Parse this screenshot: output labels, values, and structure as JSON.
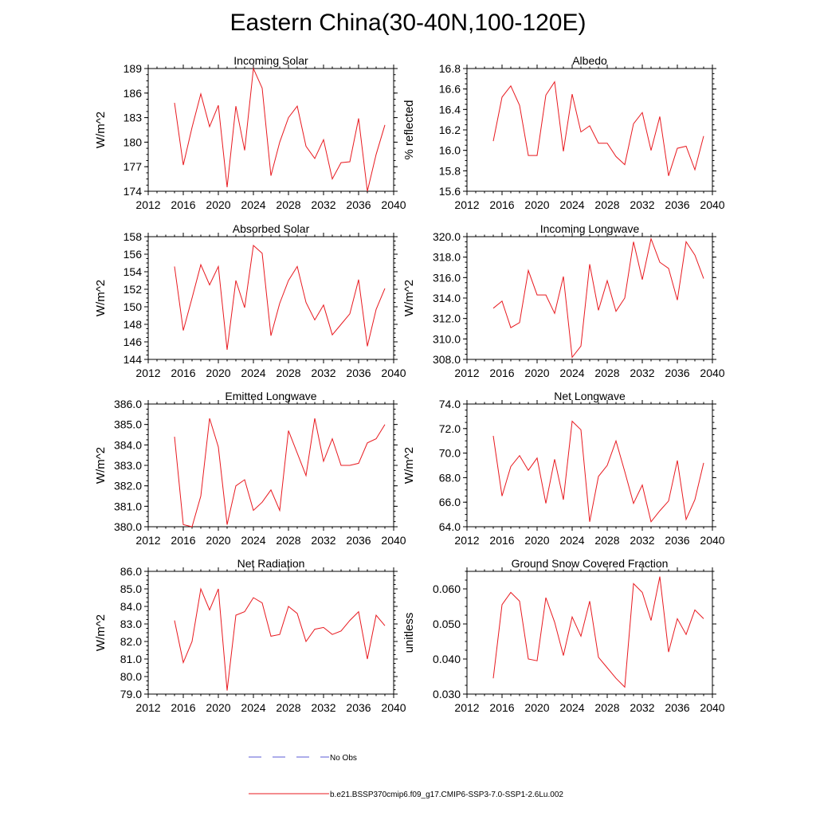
{
  "figure": {
    "title": "Eastern China(30-40N,100-120E)"
  },
  "legend": {
    "entries": [
      {
        "label": "No Obs",
        "color": "#5b5bd6",
        "style": "dashed"
      },
      {
        "label": "b.e21.BSSP370cmip6.f09_g17.CMIP6-SSP3-7.0-SSP1-2.6Lu.002",
        "color": "#e8191f",
        "style": "solid"
      }
    ]
  },
  "colors": {
    "series": "#e8191f",
    "axes": "#000000"
  },
  "chart_data": [
    {
      "type": "line",
      "title": "Incoming Solar",
      "ylabel": "W/m^2",
      "xlim": [
        2012,
        2040
      ],
      "ylim": [
        174,
        189
      ],
      "xticks": [
        "2012",
        "2016",
        "2020",
        "2024",
        "2028",
        "2032",
        "2036",
        "2040"
      ],
      "yticks": [
        "174",
        "177",
        "180",
        "183",
        "186",
        "189"
      ],
      "series": [
        {
          "x": [
            2015,
            2016,
            2017,
            2018,
            2019,
            2020,
            2021,
            2022,
            2023,
            2024,
            2025,
            2026,
            2027,
            2028,
            2029,
            2030,
            2031,
            2032,
            2033,
            2034,
            2035,
            2036,
            2037,
            2038,
            2039
          ],
          "values": [
            184.8,
            177.2,
            181.8,
            185.9,
            181.9,
            184.5,
            174.5,
            184.4,
            179.0,
            189.0,
            186.6,
            175.9,
            180.0,
            183.0,
            184.4,
            179.5,
            178.0,
            180.3,
            175.5,
            177.5,
            177.6,
            182.9,
            174.0,
            178.5,
            182.1
          ]
        }
      ]
    },
    {
      "type": "line",
      "title": "Albedo",
      "ylabel": "% reflected",
      "xlim": [
        2012,
        2040
      ],
      "ylim": [
        15.6,
        16.8
      ],
      "xticks": [
        "2012",
        "2016",
        "2020",
        "2024",
        "2028",
        "2032",
        "2036",
        "2040"
      ],
      "yticks": [
        "15.6",
        "15.8",
        "16.0",
        "16.2",
        "16.4",
        "16.6",
        "16.8"
      ],
      "series": [
        {
          "x": [
            2015,
            2016,
            2017,
            2018,
            2019,
            2020,
            2021,
            2022,
            2023,
            2024,
            2025,
            2026,
            2027,
            2028,
            2029,
            2030,
            2031,
            2032,
            2033,
            2034,
            2035,
            2036,
            2037,
            2038,
            2039
          ],
          "values": [
            16.09,
            16.52,
            16.63,
            16.44,
            15.95,
            15.95,
            16.54,
            16.67,
            15.99,
            16.55,
            16.18,
            16.24,
            16.07,
            16.07,
            15.94,
            15.86,
            16.26,
            16.37,
            16.0,
            16.33,
            15.75,
            16.02,
            16.04,
            15.81,
            16.14
          ]
        }
      ]
    },
    {
      "type": "line",
      "title": "Absorbed Solar",
      "ylabel": "W/m^2",
      "xlim": [
        2012,
        2040
      ],
      "ylim": [
        144,
        158
      ],
      "xticks": [
        "2012",
        "2016",
        "2020",
        "2024",
        "2028",
        "2032",
        "2036",
        "2040"
      ],
      "yticks": [
        "144",
        "146",
        "148",
        "150",
        "152",
        "154",
        "156",
        "158"
      ],
      "series": [
        {
          "x": [
            2015,
            2016,
            2017,
            2018,
            2019,
            2020,
            2021,
            2022,
            2023,
            2024,
            2025,
            2026,
            2027,
            2028,
            2029,
            2030,
            2031,
            2032,
            2033,
            2034,
            2035,
            2036,
            2037,
            2038,
            2039
          ],
          "values": [
            154.6,
            147.3,
            151.0,
            154.8,
            152.5,
            154.6,
            145.1,
            153.0,
            149.9,
            157.0,
            156.1,
            146.7,
            150.4,
            153.0,
            154.6,
            150.5,
            148.5,
            150.2,
            146.8,
            148.0,
            149.2,
            153.1,
            145.5,
            149.7,
            152.1
          ]
        }
      ]
    },
    {
      "type": "line",
      "title": "Incoming Longwave",
      "ylabel": "W/m^2",
      "xlim": [
        2012,
        2040
      ],
      "ylim": [
        308.0,
        320.0
      ],
      "xticks": [
        "2012",
        "2016",
        "2020",
        "2024",
        "2028",
        "2032",
        "2036",
        "2040"
      ],
      "yticks": [
        "308.0",
        "310.0",
        "312.0",
        "314.0",
        "316.0",
        "318.0",
        "320.0"
      ],
      "series": [
        {
          "x": [
            2015,
            2016,
            2017,
            2018,
            2019,
            2020,
            2021,
            2022,
            2023,
            2024,
            2025,
            2026,
            2027,
            2028,
            2029,
            2030,
            2031,
            2032,
            2033,
            2034,
            2035,
            2036,
            2037,
            2038,
            2039
          ],
          "values": [
            313.0,
            313.7,
            311.1,
            311.6,
            316.7,
            314.3,
            314.3,
            312.5,
            316.1,
            308.2,
            309.3,
            317.3,
            312.8,
            315.7,
            312.7,
            314.0,
            319.5,
            315.8,
            319.8,
            317.5,
            316.9,
            313.8,
            319.5,
            318.2,
            315.9
          ]
        }
      ]
    },
    {
      "type": "line",
      "title": "Emitted Longwave",
      "ylabel": "W/m^2",
      "xlim": [
        2012,
        2040
      ],
      "ylim": [
        380.0,
        386.0
      ],
      "xticks": [
        "2012",
        "2016",
        "2020",
        "2024",
        "2028",
        "2032",
        "2036",
        "2040"
      ],
      "yticks": [
        "380.0",
        "381.0",
        "382.0",
        "383.0",
        "384.0",
        "385.0",
        "386.0"
      ],
      "series": [
        {
          "x": [
            2015,
            2016,
            2017,
            2018,
            2019,
            2020,
            2021,
            2022,
            2023,
            2024,
            2025,
            2026,
            2027,
            2028,
            2029,
            2030,
            2031,
            2032,
            2033,
            2034,
            2035,
            2036,
            2037,
            2038,
            2039
          ],
          "values": [
            384.4,
            380.1,
            380.0,
            381.5,
            385.3,
            383.9,
            380.1,
            382.0,
            382.3,
            380.8,
            381.2,
            381.8,
            380.8,
            384.7,
            383.6,
            382.5,
            385.3,
            383.2,
            384.3,
            383.0,
            383.0,
            383.1,
            384.1,
            384.3,
            385.0
          ]
        }
      ]
    },
    {
      "type": "line",
      "title": "Net Longwave",
      "ylabel": "W/m^2",
      "xlim": [
        2012,
        2040
      ],
      "ylim": [
        64.0,
        74.0
      ],
      "xticks": [
        "2012",
        "2016",
        "2020",
        "2024",
        "2028",
        "2032",
        "2036",
        "2040"
      ],
      "yticks": [
        "64.0",
        "66.0",
        "68.0",
        "70.0",
        "72.0",
        "74.0"
      ],
      "series": [
        {
          "x": [
            2015,
            2016,
            2017,
            2018,
            2019,
            2020,
            2021,
            2022,
            2023,
            2024,
            2025,
            2026,
            2027,
            2028,
            2029,
            2030,
            2031,
            2032,
            2033,
            2034,
            2035,
            2036,
            2037,
            2038,
            2039
          ],
          "values": [
            71.4,
            66.5,
            68.9,
            69.8,
            68.6,
            69.6,
            65.9,
            69.5,
            66.2,
            72.6,
            71.9,
            64.4,
            68.1,
            69.0,
            71.0,
            68.5,
            65.9,
            67.4,
            64.4,
            65.3,
            66.1,
            69.4,
            64.6,
            66.2,
            69.2
          ]
        }
      ]
    },
    {
      "type": "line",
      "title": "Net Radiation",
      "ylabel": "W/m^2",
      "xlim": [
        2012,
        2040
      ],
      "ylim": [
        79.0,
        86.0
      ],
      "xticks": [
        "2012",
        "2016",
        "2020",
        "2024",
        "2028",
        "2032",
        "2036",
        "2040"
      ],
      "yticks": [
        "79.0",
        "80.0",
        "81.0",
        "82.0",
        "83.0",
        "84.0",
        "85.0",
        "86.0"
      ],
      "series": [
        {
          "x": [
            2015,
            2016,
            2017,
            2018,
            2019,
            2020,
            2021,
            2022,
            2023,
            2024,
            2025,
            2026,
            2027,
            2028,
            2029,
            2030,
            2031,
            2032,
            2033,
            2034,
            2035,
            2036,
            2037,
            2038,
            2039
          ],
          "values": [
            83.2,
            80.8,
            82.0,
            85.0,
            83.8,
            85.0,
            79.2,
            83.5,
            83.7,
            84.5,
            84.2,
            82.3,
            82.4,
            84.0,
            83.6,
            82.0,
            82.7,
            82.8,
            82.4,
            82.6,
            83.2,
            83.7,
            81.0,
            83.5,
            82.9
          ]
        }
      ]
    },
    {
      "type": "line",
      "title": "Ground Snow Covered Fraction",
      "ylabel": "unitless",
      "xlim": [
        2012,
        2040
      ],
      "ylim": [
        0.03,
        0.065
      ],
      "xticks": [
        "2012",
        "2016",
        "2020",
        "2024",
        "2028",
        "2032",
        "2036",
        "2040"
      ],
      "yticks": [
        "0.030",
        "0.040",
        "0.050",
        "0.060"
      ],
      "series": [
        {
          "x": [
            2015,
            2016,
            2017,
            2018,
            2019,
            2020,
            2021,
            2022,
            2023,
            2024,
            2025,
            2026,
            2027,
            2028,
            2029,
            2030,
            2031,
            2032,
            2033,
            2034,
            2035,
            2036,
            2037,
            2038,
            2039
          ],
          "values": [
            0.0345,
            0.0555,
            0.059,
            0.0565,
            0.04,
            0.0395,
            0.0575,
            0.0505,
            0.041,
            0.052,
            0.0465,
            0.0565,
            0.0405,
            0.0375,
            0.0345,
            0.032,
            0.0615,
            0.059,
            0.051,
            0.0635,
            0.042,
            0.0515,
            0.047,
            0.054,
            0.0515
          ]
        }
      ]
    }
  ]
}
